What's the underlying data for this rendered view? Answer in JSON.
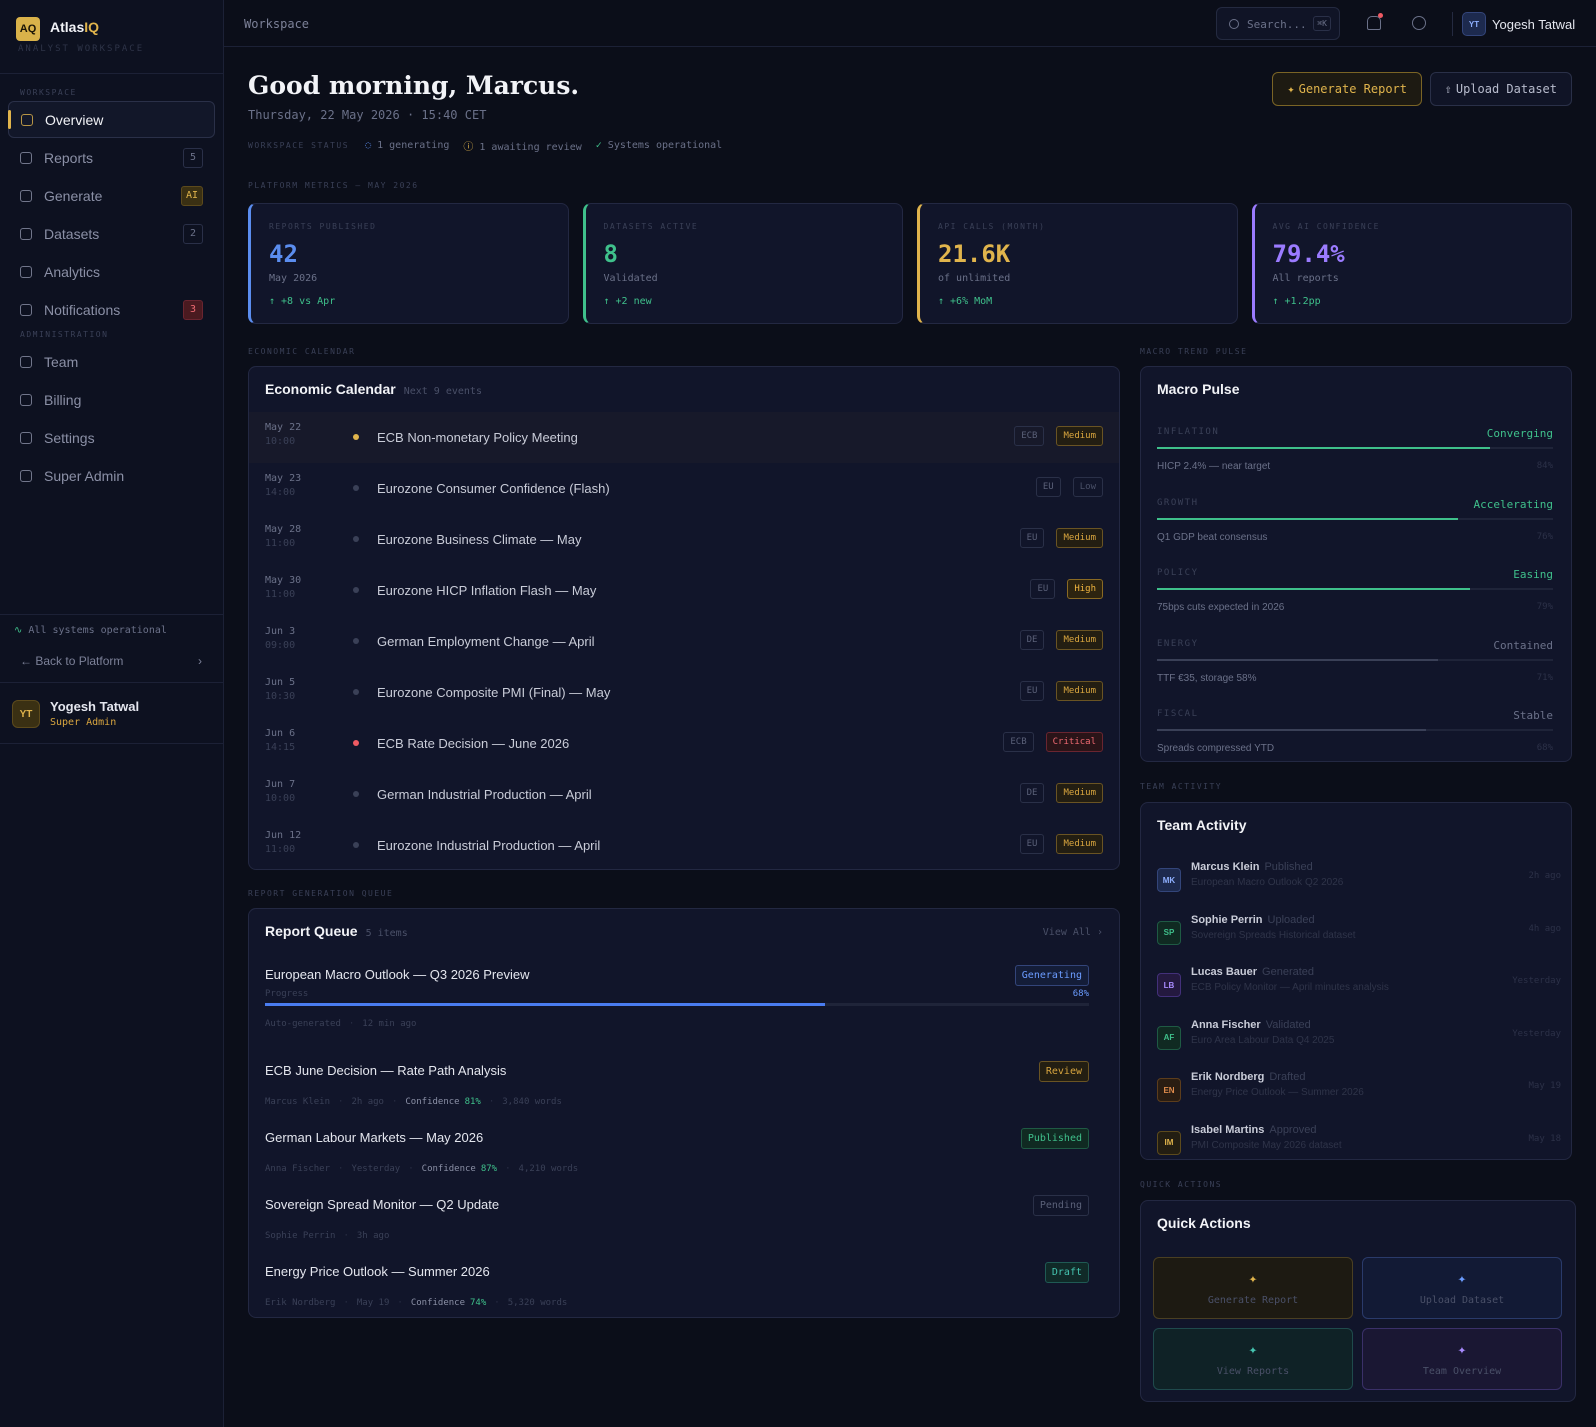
{
  "brand": {
    "logo": "AQ",
    "name": "Atlas",
    "name_accent": "IQ",
    "subtitle": "ANALYST WORKSPACE"
  },
  "sidebar": {
    "sections": [
      {
        "title": "WORKSPACE",
        "items": [
          {
            "label": "Overview",
            "active": true
          },
          {
            "label": "Reports",
            "badge": "5"
          },
          {
            "label": "Generate",
            "badge": "AI",
            "tone": "accent"
          },
          {
            "label": "Datasets",
            "badge": "2"
          },
          {
            "label": "Analytics"
          },
          {
            "label": "Notifications",
            "badge": "3",
            "tone": "alert"
          }
        ]
      },
      {
        "title": "ADMINISTRATION",
        "items": [
          {
            "label": "Team"
          },
          {
            "label": "Billing"
          },
          {
            "label": "Settings"
          },
          {
            "label": "Super Admin"
          }
        ]
      }
    ],
    "status": "All systems operational",
    "back": "Back to Platform",
    "user": {
      "initials": "YT",
      "name": "Yogesh Tatwal",
      "role": "Super Admin"
    }
  },
  "topbar": {
    "breadcrumb": "Workspace",
    "search": "Search...",
    "shortcut": "⌘K",
    "user_initials": "YT",
    "user_name": "Yogesh Tatwal"
  },
  "header": {
    "greeting": "Good morning, Marcus.",
    "date": "Thursday, 22 May 2026 · 15:40 CET",
    "status_label": "WORKSPACE STATUS",
    "statuses": [
      "1 generating",
      "1 awaiting review",
      "Systems operational"
    ],
    "buttons": [
      "Generate Report",
      "Upload Dataset"
    ]
  },
  "metrics": {
    "section": "PLATFORM METRICS — MAY 2026",
    "cards": [
      {
        "label": "REPORTS PUBLISHED",
        "value": "42",
        "sub": "May 2026",
        "delta": "↑ +8 vs Apr",
        "color": "#5b8def"
      },
      {
        "label": "DATASETS ACTIVE",
        "value": "8",
        "sub": "Validated",
        "delta": "↑ +2 new",
        "color": "#3fc08b"
      },
      {
        "label": "API CALLS (MONTH)",
        "value": "21.6K",
        "sub": "of unlimited",
        "delta": "↑ +6% MoM",
        "color": "#e0b44c"
      },
      {
        "label": "AVG AI CONFIDENCE",
        "value": "79.4%",
        "sub": "All reports",
        "delta": "↑ +1.2pp",
        "color": "#9b7bff"
      }
    ]
  },
  "calendar": {
    "section": "ECONOMIC CALENDAR",
    "title": "Economic Calendar",
    "subtitle": "Next 9 events",
    "events": [
      {
        "date": "May 22",
        "time": "10:00",
        "name": "ECB Non-monetary Policy Meeting",
        "region": "ECB",
        "impact": "Medium"
      },
      {
        "date": "May 23",
        "time": "14:00",
        "name": "Eurozone Consumer Confidence (Flash)",
        "region": "EU",
        "impact": "Low"
      },
      {
        "date": "May 28",
        "time": "11:00",
        "name": "Eurozone Business Climate — May",
        "region": "EU",
        "impact": "Medium"
      },
      {
        "date": "May 30",
        "time": "11:00",
        "name": "Eurozone HICP Inflation Flash — May",
        "region": "EU",
        "impact": "High"
      },
      {
        "date": "Jun 3",
        "time": "09:00",
        "name": "German Employment Change — April",
        "region": "DE",
        "impact": "Medium"
      },
      {
        "date": "Jun 5",
        "time": "10:30",
        "name": "Eurozone Composite PMI (Final) — May",
        "region": "EU",
        "impact": "Medium"
      },
      {
        "date": "Jun 6",
        "time": "14:15",
        "name": "ECB Rate Decision — June 2026",
        "region": "ECB",
        "impact": "Critical"
      },
      {
        "date": "Jun 7",
        "time": "10:00",
        "name": "German Industrial Production — April",
        "region": "DE",
        "impact": "Medium"
      },
      {
        "date": "Jun 12",
        "time": "11:00",
        "name": "Eurozone Industrial Production — April",
        "region": "EU",
        "impact": "Medium"
      }
    ]
  },
  "macro": {
    "section": "MACRO TREND PULSE",
    "title": "Macro Pulse",
    "items": [
      {
        "name": "INFLATION",
        "status": "Converging",
        "note": "HICP 2.4% — near target",
        "value": 84,
        "label": "84%",
        "color": "#3fc08b"
      },
      {
        "name": "GROWTH",
        "status": "Accelerating",
        "note": "Q1 GDP beat consensus",
        "value": 76,
        "label": "76%",
        "color": "#3fc08b"
      },
      {
        "name": "POLICY",
        "status": "Easing",
        "note": "75bps cuts expected in 2026",
        "value": 79,
        "label": "79%",
        "color": "#3fc08b"
      },
      {
        "name": "ENERGY",
        "status": "Contained",
        "note": "TTF €35, storage 58%",
        "value": 71,
        "label": "71%",
        "color": "#3a4057"
      },
      {
        "name": "FISCAL",
        "status": "Stable",
        "note": "Spreads compressed YTD",
        "value": 68,
        "label": "68%",
        "color": "#3a4057"
      }
    ]
  },
  "queue": {
    "section": "REPORT GENERATION QUEUE",
    "title": "Report Queue",
    "count": "5 items",
    "link": "View All ›",
    "items": [
      {
        "title": "European Macro Outlook — Q3 2026 Preview",
        "status": "Generating",
        "progress_label": "Progress",
        "progress": {
          "value": 68,
          "label": "68%"
        },
        "meta": [
          "Auto-generated",
          "12 min ago"
        ]
      },
      {
        "title": "ECB June Decision — Rate Path Analysis",
        "status": "Review",
        "meta": [
          "Marcus Klein",
          "2h ago"
        ],
        "confidence_label": "Confidence",
        "confidence": "81%",
        "words": "3,840 words"
      },
      {
        "title": "German Labour Markets — May 2026",
        "status": "Published",
        "meta": [
          "Anna Fischer",
          "Yesterday"
        ],
        "confidence_label": "Confidence",
        "confidence": "87%",
        "words": "4,210 words"
      },
      {
        "title": "Sovereign Spread Monitor — Q2 Update",
        "status": "Pending",
        "meta": [
          "Sophie Perrin",
          "3h ago"
        ]
      },
      {
        "title": "Energy Price Outlook — Summer 2026",
        "status": "Draft",
        "meta": [
          "Erik Nordberg",
          "May 19"
        ],
        "confidence_label": "Confidence",
        "confidence": "74%",
        "words": "5,320 words"
      }
    ]
  },
  "team": {
    "section": "TEAM ACTIVITY",
    "title": "Team Activity",
    "items": [
      {
        "initials": "MK",
        "name": "Marcus Klein",
        "action": "Published",
        "object": "European Macro Outlook Q2 2026",
        "time": "2h ago"
      },
      {
        "initials": "SP",
        "name": "Sophie Perrin",
        "action": "Uploaded",
        "object": "Sovereign Spreads Historical dataset",
        "time": "4h ago"
      },
      {
        "initials": "LB",
        "name": "Lucas Bauer",
        "action": "Generated",
        "object": "ECB Policy Monitor — April minutes analysis",
        "time": "Yesterday"
      },
      {
        "initials": "AF",
        "name": "Anna Fischer",
        "action": "Validated",
        "object": "Euro Area Labour Data Q4 2025",
        "time": "Yesterday"
      },
      {
        "initials": "EN",
        "name": "Erik Nordberg",
        "action": "Drafted",
        "object": "Energy Price Outlook — Summer 2026",
        "time": "May 19"
      },
      {
        "initials": "IM",
        "name": "Isabel Martins",
        "action": "Approved",
        "object": "PMI Composite May 2026 dataset",
        "time": "May 18"
      }
    ]
  },
  "quick": {
    "section": "QUICK ACTIONS",
    "title": "Quick Actions",
    "actions": [
      "Generate Report",
      "Upload Dataset",
      "View Reports",
      "Team Overview"
    ]
  }
}
